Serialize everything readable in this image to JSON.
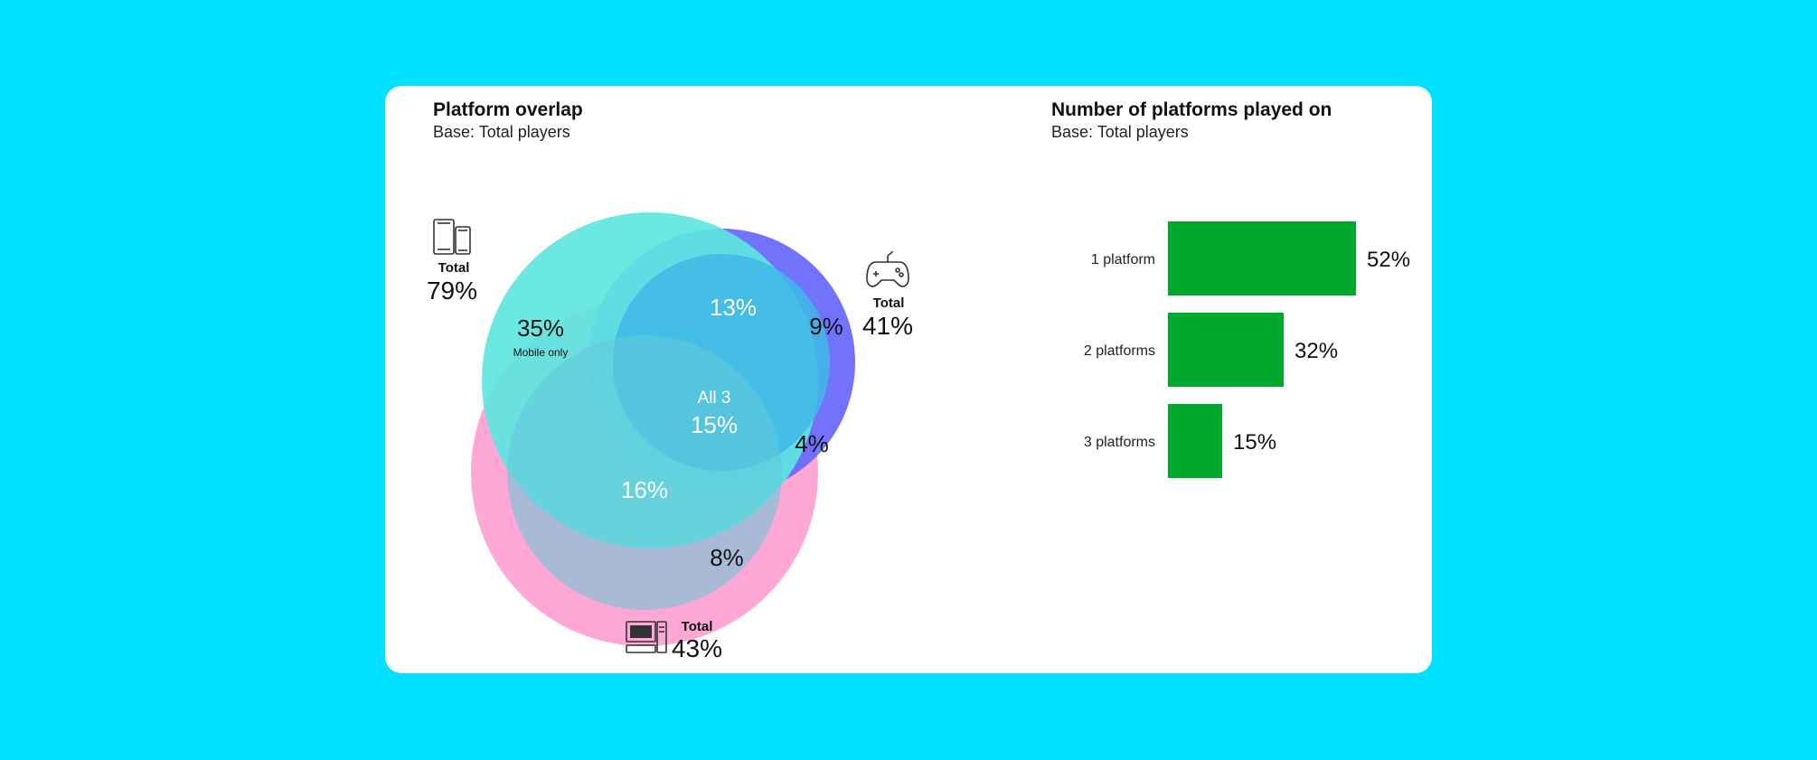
{
  "colors": {
    "background": "#00e1ff",
    "card": "#ffffff",
    "mobile": "#5ee6e0",
    "console": "#6a6afc",
    "pc": "#ffa3d4",
    "bars": "#00a82e"
  },
  "venn": {
    "title": "Platform overlap",
    "subtitle": "Base: Total players",
    "mobile": {
      "icon": "phone-tablet-icon",
      "total_label": "Total",
      "total": "79%"
    },
    "console": {
      "icon": "gamepad-icon",
      "total_label": "Total",
      "total": "41%"
    },
    "pc": {
      "icon": "desktop-computer-icon",
      "total_label": "Total",
      "total": "43%"
    },
    "regions": {
      "mobile_only": "35%",
      "mobile_only_label": "Mobile only",
      "mobile_console": "13%",
      "console_only": "9%",
      "all3_label": "All 3",
      "all3": "15%",
      "console_pc": "4%",
      "mobile_pc": "16%",
      "pc_only": "8%"
    }
  },
  "chart_data": {
    "type": "bar",
    "title": "Number of platforms played on",
    "subtitle": "Base: Total players",
    "categories": [
      "1 platform",
      "2 platforms",
      "3 platforms"
    ],
    "values": [
      52,
      32,
      15
    ],
    "value_labels": [
      "52%",
      "32%",
      "15%"
    ],
    "orientation": "horizontal",
    "xlim": [
      0,
      100
    ]
  }
}
